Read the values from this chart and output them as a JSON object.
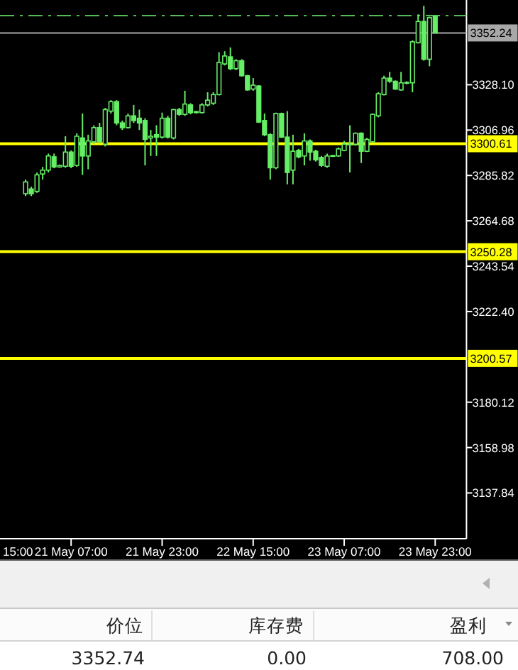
{
  "chart_data": [
    {
      "type": "candlestick",
      "color": "#66ee66",
      "categories": [
        null,
        null,
        null,
        null,
        null,
        null,
        null,
        null,
        null,
        null,
        null,
        null,
        "21 May 07:00",
        null,
        null,
        null,
        null,
        null,
        null,
        null,
        null,
        null,
        null,
        null,
        null,
        null,
        null,
        null,
        "21 May 23:00",
        null,
        null,
        null,
        null,
        null,
        null,
        null,
        null,
        null,
        null,
        null,
        null,
        null,
        null,
        null,
        "22 May 15:00",
        null,
        null,
        null,
        null,
        null,
        null,
        null,
        null,
        null,
        null,
        null,
        null,
        null,
        null,
        null,
        "23 May 07:00",
        null,
        null,
        null,
        null,
        null,
        null,
        null,
        null,
        null,
        null,
        null,
        null,
        null,
        null,
        null,
        "23 May 23:00",
        null,
        null,
        null,
        null,
        null
      ],
      "ohlc": [
        null,
        null,
        null,
        null,
        [
          3277.3,
          3283.9,
          3276.2,
          3282.8
        ],
        [
          3279.5,
          3280.6,
          3276.2,
          3277.3
        ],
        [
          3278.4,
          3287.2,
          3277.7,
          3286.1
        ],
        [
          3286.5,
          3289.8,
          3283.9,
          3288.3
        ],
        [
          3288.3,
          3296.0,
          3287.2,
          3294.9
        ],
        [
          3294.5,
          3296.0,
          3289.2,
          3289.8
        ],
        [
          3289.8,
          3290.9,
          3289.4,
          3290.5
        ],
        [
          3290.1,
          3304.1,
          3289.4,
          3296.7
        ],
        [
          3296.7,
          3297.5,
          3289.2,
          3290.1
        ],
        [
          3290.5,
          3305.5,
          3289.8,
          3304.1
        ],
        [
          3303.3,
          3314.7,
          3286.1,
          3294.9
        ],
        [
          3294.9,
          3304.8,
          3288.7,
          3301.9
        ],
        [
          3301.5,
          3309.2,
          3300.4,
          3308.1
        ],
        [
          3308.1,
          3310.3,
          3300.8,
          3301.5
        ],
        [
          3300.4,
          3317.3,
          3299.3,
          3316.5
        ],
        [
          3315.8,
          3320.9,
          3314.7,
          3320.2
        ],
        [
          3320.2,
          3320.9,
          3309.2,
          3310.3
        ],
        [
          3310.3,
          3311.4,
          3307.0,
          3308.1
        ],
        [
          3308.1,
          3314.7,
          3307.7,
          3313.6
        ],
        [
          3313.6,
          3318.7,
          3310.3,
          3311.4
        ],
        [
          3312.5,
          3316.5,
          3307.0,
          3310.3
        ],
        [
          3311.4,
          3312.5,
          3290.5,
          3302.6
        ],
        [
          3303.3,
          3307.0,
          3294.9,
          3304.1
        ],
        [
          3304.8,
          3309.2,
          3294.9,
          3303.7
        ],
        [
          3303.7,
          3315.1,
          3303.0,
          3312.5
        ],
        [
          3312.5,
          3313.6,
          3303.0,
          3303.7
        ],
        [
          3303.3,
          3316.9,
          3302.6,
          3316.5
        ],
        [
          3316.5,
          3317.3,
          3313.6,
          3314.3
        ],
        [
          3314.3,
          3325.3,
          3313.6,
          3319.1
        ],
        [
          3318.7,
          3319.5,
          3314.3,
          3315.1
        ],
        [
          3315.1,
          3315.8,
          3314.7,
          3315.6
        ],
        [
          3315.1,
          3319.5,
          3314.7,
          3318.7
        ],
        [
          3318.7,
          3324.6,
          3318.0,
          3320.9
        ],
        [
          3319.5,
          3324.6,
          3318.7,
          3323.5
        ],
        [
          3323.5,
          3343.3,
          3323.1,
          3338.5
        ],
        [
          3337.8,
          3343.7,
          3337.1,
          3341.5
        ],
        [
          3341.1,
          3345.5,
          3334.9,
          3335.6
        ],
        [
          3335.6,
          3340.0,
          3334.9,
          3339.3
        ],
        [
          3339.3,
          3340.0,
          3331.9,
          3332.3
        ],
        [
          3332.3,
          3332.7,
          3325.3,
          3325.7
        ],
        [
          3326.1,
          3331.2,
          3325.3,
          3327.9
        ],
        [
          3327.5,
          3327.9,
          3310.3,
          3310.7
        ],
        [
          3311.4,
          3314.7,
          3304.1,
          3304.8
        ],
        [
          3304.8,
          3305.5,
          3283.9,
          3289.4
        ],
        [
          3289.4,
          3315.1,
          3288.7,
          3314.7
        ],
        [
          3314.7,
          3315.1,
          3303.3,
          3303.7
        ],
        [
          3303.7,
          3315.8,
          3281.7,
          3287.2
        ],
        [
          3288.3,
          3304.8,
          3281.7,
          3297.1
        ],
        [
          3297.5,
          3298.2,
          3293.8,
          3294.5
        ],
        [
          3294.9,
          3305.5,
          3290.5,
          3301.9
        ],
        [
          3301.9,
          3302.6,
          3292.7,
          3296.7
        ],
        [
          3297.1,
          3297.8,
          3292.3,
          3293.1
        ],
        [
          3294.2,
          3294.9,
          3289.8,
          3290.5
        ],
        [
          3290.1,
          3296.0,
          3289.4,
          3294.9
        ],
        [
          3295.1,
          3295.3,
          3294.5,
          3294.7
        ],
        [
          3294.9,
          3298.9,
          3294.5,
          3298.2
        ],
        [
          3297.5,
          3301.9,
          3297.1,
          3300.4
        ],
        [
          3300.6,
          3309.2,
          3287.2,
          3300.2
        ],
        [
          3300.4,
          3305.9,
          3299.7,
          3305.5
        ],
        [
          3305.5,
          3305.9,
          3291.6,
          3297.1
        ],
        [
          3297.1,
          3303.3,
          3296.7,
          3302.6
        ],
        [
          3301.5,
          3314.7,
          3301.1,
          3314.3
        ],
        [
          3313.6,
          3324.6,
          3312.9,
          3323.9
        ],
        [
          3323.5,
          3332.3,
          3323.1,
          3331.2
        ],
        [
          3331.2,
          3334.1,
          3329.0,
          3329.7
        ],
        [
          3329.7,
          3330.1,
          3325.7,
          3326.1
        ],
        [
          3325.7,
          3334.1,
          3325.3,
          3329.0
        ],
        [
          3329.2,
          3329.7,
          3328.3,
          3328.8
        ],
        [
          3329.0,
          3348.8,
          3324.6,
          3348.1
        ],
        [
          3347.7,
          3360.9,
          3347.3,
          3357.6
        ],
        [
          3357.6,
          3364.9,
          3339.3,
          3340.0
        ],
        [
          3340.0,
          3359.8,
          3336.7,
          3359.4
        ],
        [
          3359.8,
          3360.5,
          3352.1,
          3352.24
        ],
        null,
        null,
        null,
        null,
        null
      ],
      "ylim": [
        3116.5,
        3367.6
      ],
      "yticks": [
        3137.84,
        3158.98,
        3180.12,
        {
          "value": 3222.4,
          "label": "3222.40"
        },
        3243.54,
        3264.68,
        3285.82,
        3306.96,
        {
          "value": 3328.1,
          "label": "3328.10"
        }
      ],
      "ref_lines": [
        {
          "axis": "y",
          "value": 3360.3,
          "color": "#55bb55",
          "line_style": "dashed"
        },
        {
          "axis": "y",
          "value": 3352.24,
          "label": "3352.24",
          "color": "#a8a8a8"
        },
        {
          "axis": "y",
          "value": 3300.61,
          "label": "3300.61",
          "color": "#ffff00"
        },
        {
          "axis": "y",
          "value": 3250.28,
          "label": "3250.28",
          "color": "#ffff00"
        },
        {
          "axis": "y",
          "value": 3200.57,
          "label": "3200.57",
          "color": "#ffff00"
        }
      ],
      "annotations": [
        "15:00"
      ]
    },
    {
      "type": "other",
      "annotations": [
        "价位",
        "库存费",
        "盈利",
        "3352.74",
        "0.00",
        "708.00"
      ]
    }
  ]
}
